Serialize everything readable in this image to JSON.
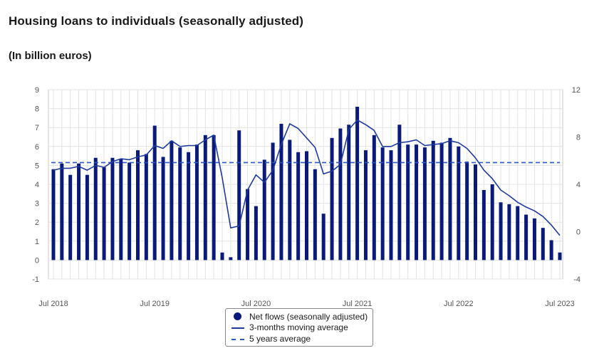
{
  "header": {
    "title": "Housing loans to individuals (seasonally adjusted)",
    "subtitle": "(In billion euros)"
  },
  "legend": {
    "net_flows": "Net flows (seasonally adjusted)",
    "moving_avg": "3-months moving average",
    "five_year_avg": "5 years average"
  },
  "colors": {
    "bars": "#0a1a7a",
    "moving_avg": "#1f3a9e",
    "five_year_avg": "#2a56c6",
    "grid": "#e3e3e3"
  },
  "chart_data": {
    "type": "bar",
    "title": "Housing loans to individuals (seasonally adjusted)",
    "ylabel": "(In billion euros)",
    "x_tick_labels": [
      "Jul 2018",
      "Jul 2019",
      "Jul 2020",
      "Jul 2021",
      "Jul 2022",
      "Jul 2023"
    ],
    "y_left_ticks": [
      -1,
      0,
      1,
      2,
      3,
      4,
      5,
      6,
      7,
      8,
      9
    ],
    "y_right_ticks": [
      -4,
      0,
      4,
      8,
      12
    ],
    "ylim_left": [
      -1,
      9
    ],
    "ylim_right": [
      -4,
      12
    ],
    "grid": true,
    "legend_position": "bottom-center",
    "categories": [
      "Jul 2018",
      "Aug 2018",
      "Sep 2018",
      "Oct 2018",
      "Nov 2018",
      "Dec 2018",
      "Jan 2019",
      "Feb 2019",
      "Mar 2019",
      "Apr 2019",
      "May 2019",
      "Jun 2019",
      "Jul 2019",
      "Aug 2019",
      "Sep 2019",
      "Oct 2019",
      "Nov 2019",
      "Dec 2019",
      "Jan 2020",
      "Feb 2020",
      "Mar 2020",
      "Apr 2020",
      "May 2020",
      "Jun 2020",
      "Jul 2020",
      "Aug 2020",
      "Sep 2020",
      "Oct 2020",
      "Nov 2020",
      "Dec 2020",
      "Jan 2021",
      "Feb 2021",
      "Mar 2021",
      "Apr 2021",
      "May 2021",
      "Jun 2021",
      "Jul 2021",
      "Aug 2021",
      "Sep 2021",
      "Oct 2021",
      "Nov 2021",
      "Dec 2021",
      "Jan 2022",
      "Feb 2022",
      "Mar 2022",
      "Apr 2022",
      "May 2022",
      "Jun 2022",
      "Jul 2022",
      "Aug 2022",
      "Sep 2022",
      "Oct 2022",
      "Nov 2022",
      "Dec 2022",
      "Jan 2023",
      "Feb 2023",
      "Mar 2023",
      "Apr 2023",
      "May 2023",
      "Jun 2023",
      "Jul 2023"
    ],
    "series": [
      {
        "name": "Net flows (seasonally adjusted)",
        "type": "bar",
        "axis": "left",
        "values": [
          4.8,
          5.1,
          4.5,
          5.1,
          4.5,
          5.4,
          4.9,
          5.4,
          5.35,
          5.15,
          5.8,
          5.6,
          7.1,
          5.45,
          6.3,
          5.95,
          5.7,
          6.1,
          6.6,
          6.6,
          0.4,
          0.15,
          6.85,
          3.75,
          2.85,
          5.3,
          6.2,
          7.2,
          6.35,
          5.7,
          5.75,
          4.8,
          2.45,
          6.45,
          6.95,
          7.15,
          8.1,
          5.8,
          6.6,
          5.95,
          5.8,
          7.15,
          6.1,
          6.1,
          5.95,
          6.3,
          6.2,
          6.45,
          6.0,
          5.2,
          5.05,
          3.7,
          4.0,
          3.05,
          2.95,
          2.85,
          2.4,
          2.2,
          1.7,
          1.05,
          0.4
        ]
      },
      {
        "name": "3-months moving average",
        "type": "line",
        "axis": "left",
        "values": [
          4.75,
          4.85,
          4.85,
          4.95,
          4.75,
          5.0,
          4.9,
          5.2,
          5.35,
          5.3,
          5.45,
          5.55,
          6.05,
          5.9,
          6.3,
          6.0,
          6.05,
          6.05,
          6.35,
          6.6,
          4.35,
          1.7,
          1.8,
          3.7,
          4.5,
          4.1,
          4.75,
          6.1,
          7.2,
          6.95,
          6.45,
          5.95,
          4.55,
          4.7,
          5.05,
          6.9,
          7.4,
          7.15,
          6.85,
          6.0,
          6.0,
          6.2,
          6.25,
          6.35,
          6.05,
          6.1,
          6.15,
          6.3,
          6.2,
          5.9,
          5.4,
          4.75,
          4.3,
          3.7,
          3.4,
          3.05,
          2.8,
          2.6,
          2.3,
          1.85,
          1.3
        ]
      },
      {
        "name": "5 years average",
        "type": "line",
        "axis": "left",
        "values_constant": 5.15
      }
    ]
  }
}
